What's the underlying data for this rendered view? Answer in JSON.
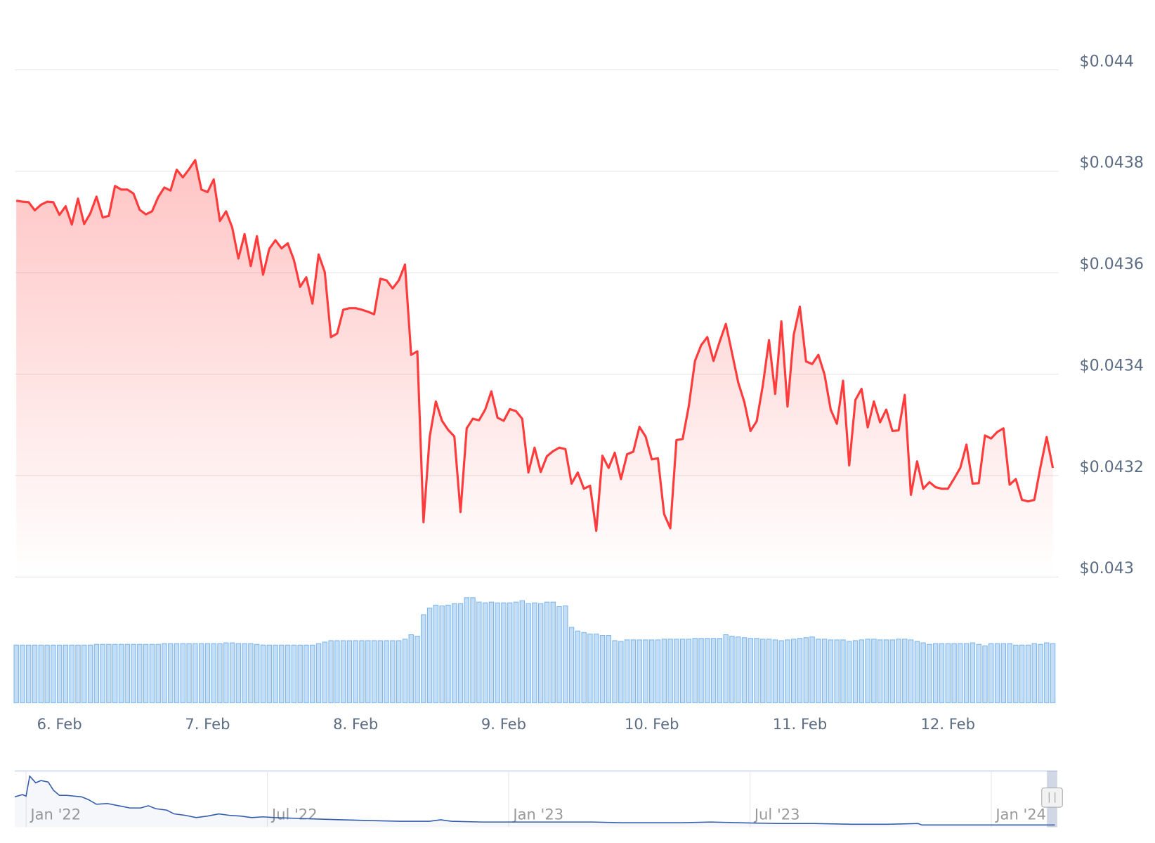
{
  "chart_data": [
    {
      "type": "line",
      "color": "#ff3b3b",
      "categories": [
        null,
        null,
        null,
        null,
        null,
        null,
        null,
        "6. Feb",
        null,
        null,
        null,
        null,
        null,
        null,
        null,
        null,
        null,
        null,
        null,
        null,
        null,
        null,
        null,
        null,
        null,
        null,
        null,
        null,
        null,
        null,
        null,
        "7. Feb",
        null,
        null,
        null,
        null,
        null,
        null,
        null,
        null,
        null,
        null,
        null,
        null,
        null,
        null,
        null,
        null,
        null,
        null,
        null,
        null,
        null,
        null,
        null,
        "8. Feb",
        null,
        null,
        null,
        null,
        null,
        null,
        null,
        null,
        null,
        null,
        null,
        null,
        null,
        null,
        null,
        null,
        null,
        null,
        null,
        null,
        null,
        null,
        null,
        "9. Feb",
        null,
        null,
        null,
        null,
        null,
        null,
        null,
        null,
        null,
        null,
        null,
        null,
        null,
        null,
        null,
        null,
        null,
        null,
        null,
        null,
        null,
        null,
        null,
        "10. Feb",
        null,
        null,
        null,
        null,
        null,
        null,
        null,
        null,
        null,
        null,
        null,
        null,
        null,
        null,
        null,
        null,
        null,
        null,
        null,
        null,
        null,
        null,
        null,
        "11. Feb",
        null,
        null,
        null,
        null,
        null,
        null,
        null,
        null,
        null,
        null,
        null,
        null,
        null,
        null,
        null,
        null,
        null,
        null,
        null,
        null,
        null,
        null,
        null,
        "12. Feb",
        null,
        null,
        null,
        null,
        null,
        null,
        null,
        null,
        null,
        null,
        null,
        null,
        null,
        null,
        null,
        null,
        null
      ],
      "values": [
        0.043742,
        0.04374,
        0.043739,
        0.043723,
        0.043734,
        0.04374,
        0.043739,
        0.043714,
        0.043731,
        0.043695,
        0.043746,
        0.043696,
        0.043717,
        0.04375,
        0.043709,
        0.043712,
        0.043771,
        0.043764,
        0.043764,
        0.043756,
        0.043724,
        0.043715,
        0.043721,
        0.043749,
        0.043768,
        0.043762,
        0.043803,
        0.043788,
        0.043804,
        0.043822,
        0.043764,
        0.043759,
        0.043784,
        0.043702,
        0.043721,
        0.043689,
        0.043628,
        0.043676,
        0.043613,
        0.043672,
        0.043596,
        0.043647,
        0.043664,
        0.043648,
        0.043658,
        0.043625,
        0.043572,
        0.043591,
        0.043539,
        0.043636,
        0.043601,
        0.043473,
        0.04348,
        0.043527,
        0.04353,
        0.04353,
        0.043527,
        0.043523,
        0.043518,
        0.043588,
        0.043585,
        0.043569,
        0.043585,
        0.043616,
        0.043438,
        0.043445,
        0.043108,
        0.043276,
        0.043346,
        0.043308,
        0.04329,
        0.043277,
        0.043128,
        0.043293,
        0.043312,
        0.043309,
        0.04333,
        0.043366,
        0.043314,
        0.043308,
        0.043331,
        0.043327,
        0.043312,
        0.043206,
        0.043255,
        0.043207,
        0.043238,
        0.043248,
        0.043255,
        0.043252,
        0.043184,
        0.043206,
        0.043174,
        0.04318,
        0.043091,
        0.043239,
        0.043215,
        0.043245,
        0.043193,
        0.043242,
        0.043247,
        0.043296,
        0.043277,
        0.043232,
        0.043234,
        0.043124,
        0.043096,
        0.04327,
        0.043272,
        0.043337,
        0.043426,
        0.043457,
        0.043473,
        0.043426,
        0.043464,
        0.043499,
        0.043442,
        0.043384,
        0.043345,
        0.043288,
        0.043307,
        0.043378,
        0.043467,
        0.043361,
        0.043504,
        0.043336,
        0.043477,
        0.043533,
        0.043425,
        0.04342,
        0.043438,
        0.043399,
        0.04333,
        0.043302,
        0.043387,
        0.04322,
        0.043349,
        0.043371,
        0.043295,
        0.043346,
        0.043305,
        0.04333,
        0.043288,
        0.043289,
        0.043359,
        0.043162,
        0.043228,
        0.043174,
        0.043187,
        0.043177,
        0.043174,
        0.043174,
        0.043194,
        0.043215,
        0.043261,
        0.043184,
        0.043185,
        0.043279,
        0.043273,
        0.043286,
        0.043293,
        0.043182,
        0.043193,
        0.043152,
        0.043149,
        0.043152,
        0.043217,
        0.043276,
        0.043215
      ],
      "ylim": [
        0.043,
        0.044
      ],
      "yticks": [
        {
          "value": 0.043,
          "label": "$0.043"
        },
        {
          "value": 0.0432,
          "label": "$0.0432"
        },
        {
          "value": 0.0434,
          "label": "$0.0434"
        },
        {
          "value": 0.0436,
          "label": "$0.0436"
        },
        {
          "value": 0.0438,
          "label": "$0.0438"
        },
        {
          "value": 0.044,
          "label": "$0.044"
        }
      ],
      "grid": true
    },
    {
      "type": "bar",
      "color": "#7cb5ec",
      "values": [
        78,
        78,
        78,
        78,
        78,
        78,
        78,
        78,
        78,
        78,
        78,
        78,
        78,
        79,
        79,
        79,
        79,
        79,
        79,
        79,
        79,
        79,
        79,
        79,
        80,
        80,
        80,
        80,
        80,
        80,
        80,
        80,
        80,
        80,
        81,
        81,
        80,
        80,
        80,
        79,
        78,
        78,
        78,
        78,
        78,
        78,
        78,
        78,
        78,
        80,
        82,
        84,
        84,
        84,
        84,
        84,
        84,
        84,
        84,
        84,
        84,
        84,
        84,
        86,
        92,
        90,
        119,
        128,
        132,
        131,
        132,
        134,
        134,
        142,
        142,
        136,
        135,
        136,
        135,
        135,
        135,
        136,
        138,
        134,
        135,
        134,
        136,
        136,
        130,
        131,
        102,
        97,
        95,
        93,
        93,
        91,
        91,
        84,
        83,
        85,
        85,
        85,
        85,
        85,
        85,
        86,
        86,
        86,
        86,
        86,
        87,
        87,
        87,
        87,
        87,
        92,
        90,
        89,
        88,
        87,
        87,
        86,
        86,
        85,
        84,
        85,
        86,
        87,
        88,
        89,
        86,
        86,
        85,
        85,
        85,
        83,
        84,
        85,
        86,
        86,
        85,
        85,
        85,
        86,
        86,
        85,
        83,
        81,
        79,
        80,
        80,
        80,
        80,
        80,
        80,
        81,
        79,
        77,
        80,
        80,
        80,
        80,
        78,
        78,
        78,
        80,
        79,
        81,
        80
      ],
      "ylim": [
        0,
        150
      ]
    },
    {
      "type": "line",
      "color": "#335cad",
      "x": [
        -0.28,
        -0.09,
        0,
        0.09,
        0.24,
        0.37,
        0.55,
        0.68,
        0.83,
        1.01,
        1.2,
        1.38,
        1.56,
        1.75,
        2.02,
        2.3,
        2.58,
        2.85,
        3.04,
        3.22,
        3.5,
        3.68,
        3.96,
        4.23,
        4.51,
        4.79,
        5.06,
        5.34,
        5.61,
        5.89,
        6.17,
        6.72,
        7.27,
        7.82,
        8.56,
        9.29,
        10.03,
        10.31,
        10.58,
        11.32,
        12.24,
        13.16,
        14.08,
        14.82,
        15.55,
        16.29,
        17.03,
        17.76,
        18.68,
        19.6,
        20.52,
        21.44,
        22.18,
        22.27,
        23.28,
        24.2,
        25.12,
        25.58
      ],
      "values": [
        41,
        44,
        42,
        69,
        60,
        63,
        61,
        50,
        43,
        43,
        42,
        41,
        37,
        31,
        32,
        29,
        26,
        26,
        29,
        25,
        23,
        18,
        16,
        13,
        15,
        18,
        16,
        15,
        13,
        14,
        13,
        12,
        11,
        10,
        9,
        8,
        8,
        10,
        8,
        7,
        7,
        7,
        7,
        6,
        6,
        6,
        7,
        6,
        5,
        5,
        4,
        4,
        5,
        3,
        3,
        3,
        3,
        3
      ],
      "xlim": [
        -0.28,
        25.64
      ],
      "ylim": [
        0,
        76
      ],
      "xticks": [
        {
          "value": 0,
          "label": "Jan '22"
        },
        {
          "value": 6,
          "label": "Jul '22"
        },
        {
          "value": 12,
          "label": "Jan '23"
        },
        {
          "value": 18,
          "label": "Jul '23"
        },
        {
          "value": 24,
          "label": "Jan '24"
        }
      ]
    }
  ]
}
